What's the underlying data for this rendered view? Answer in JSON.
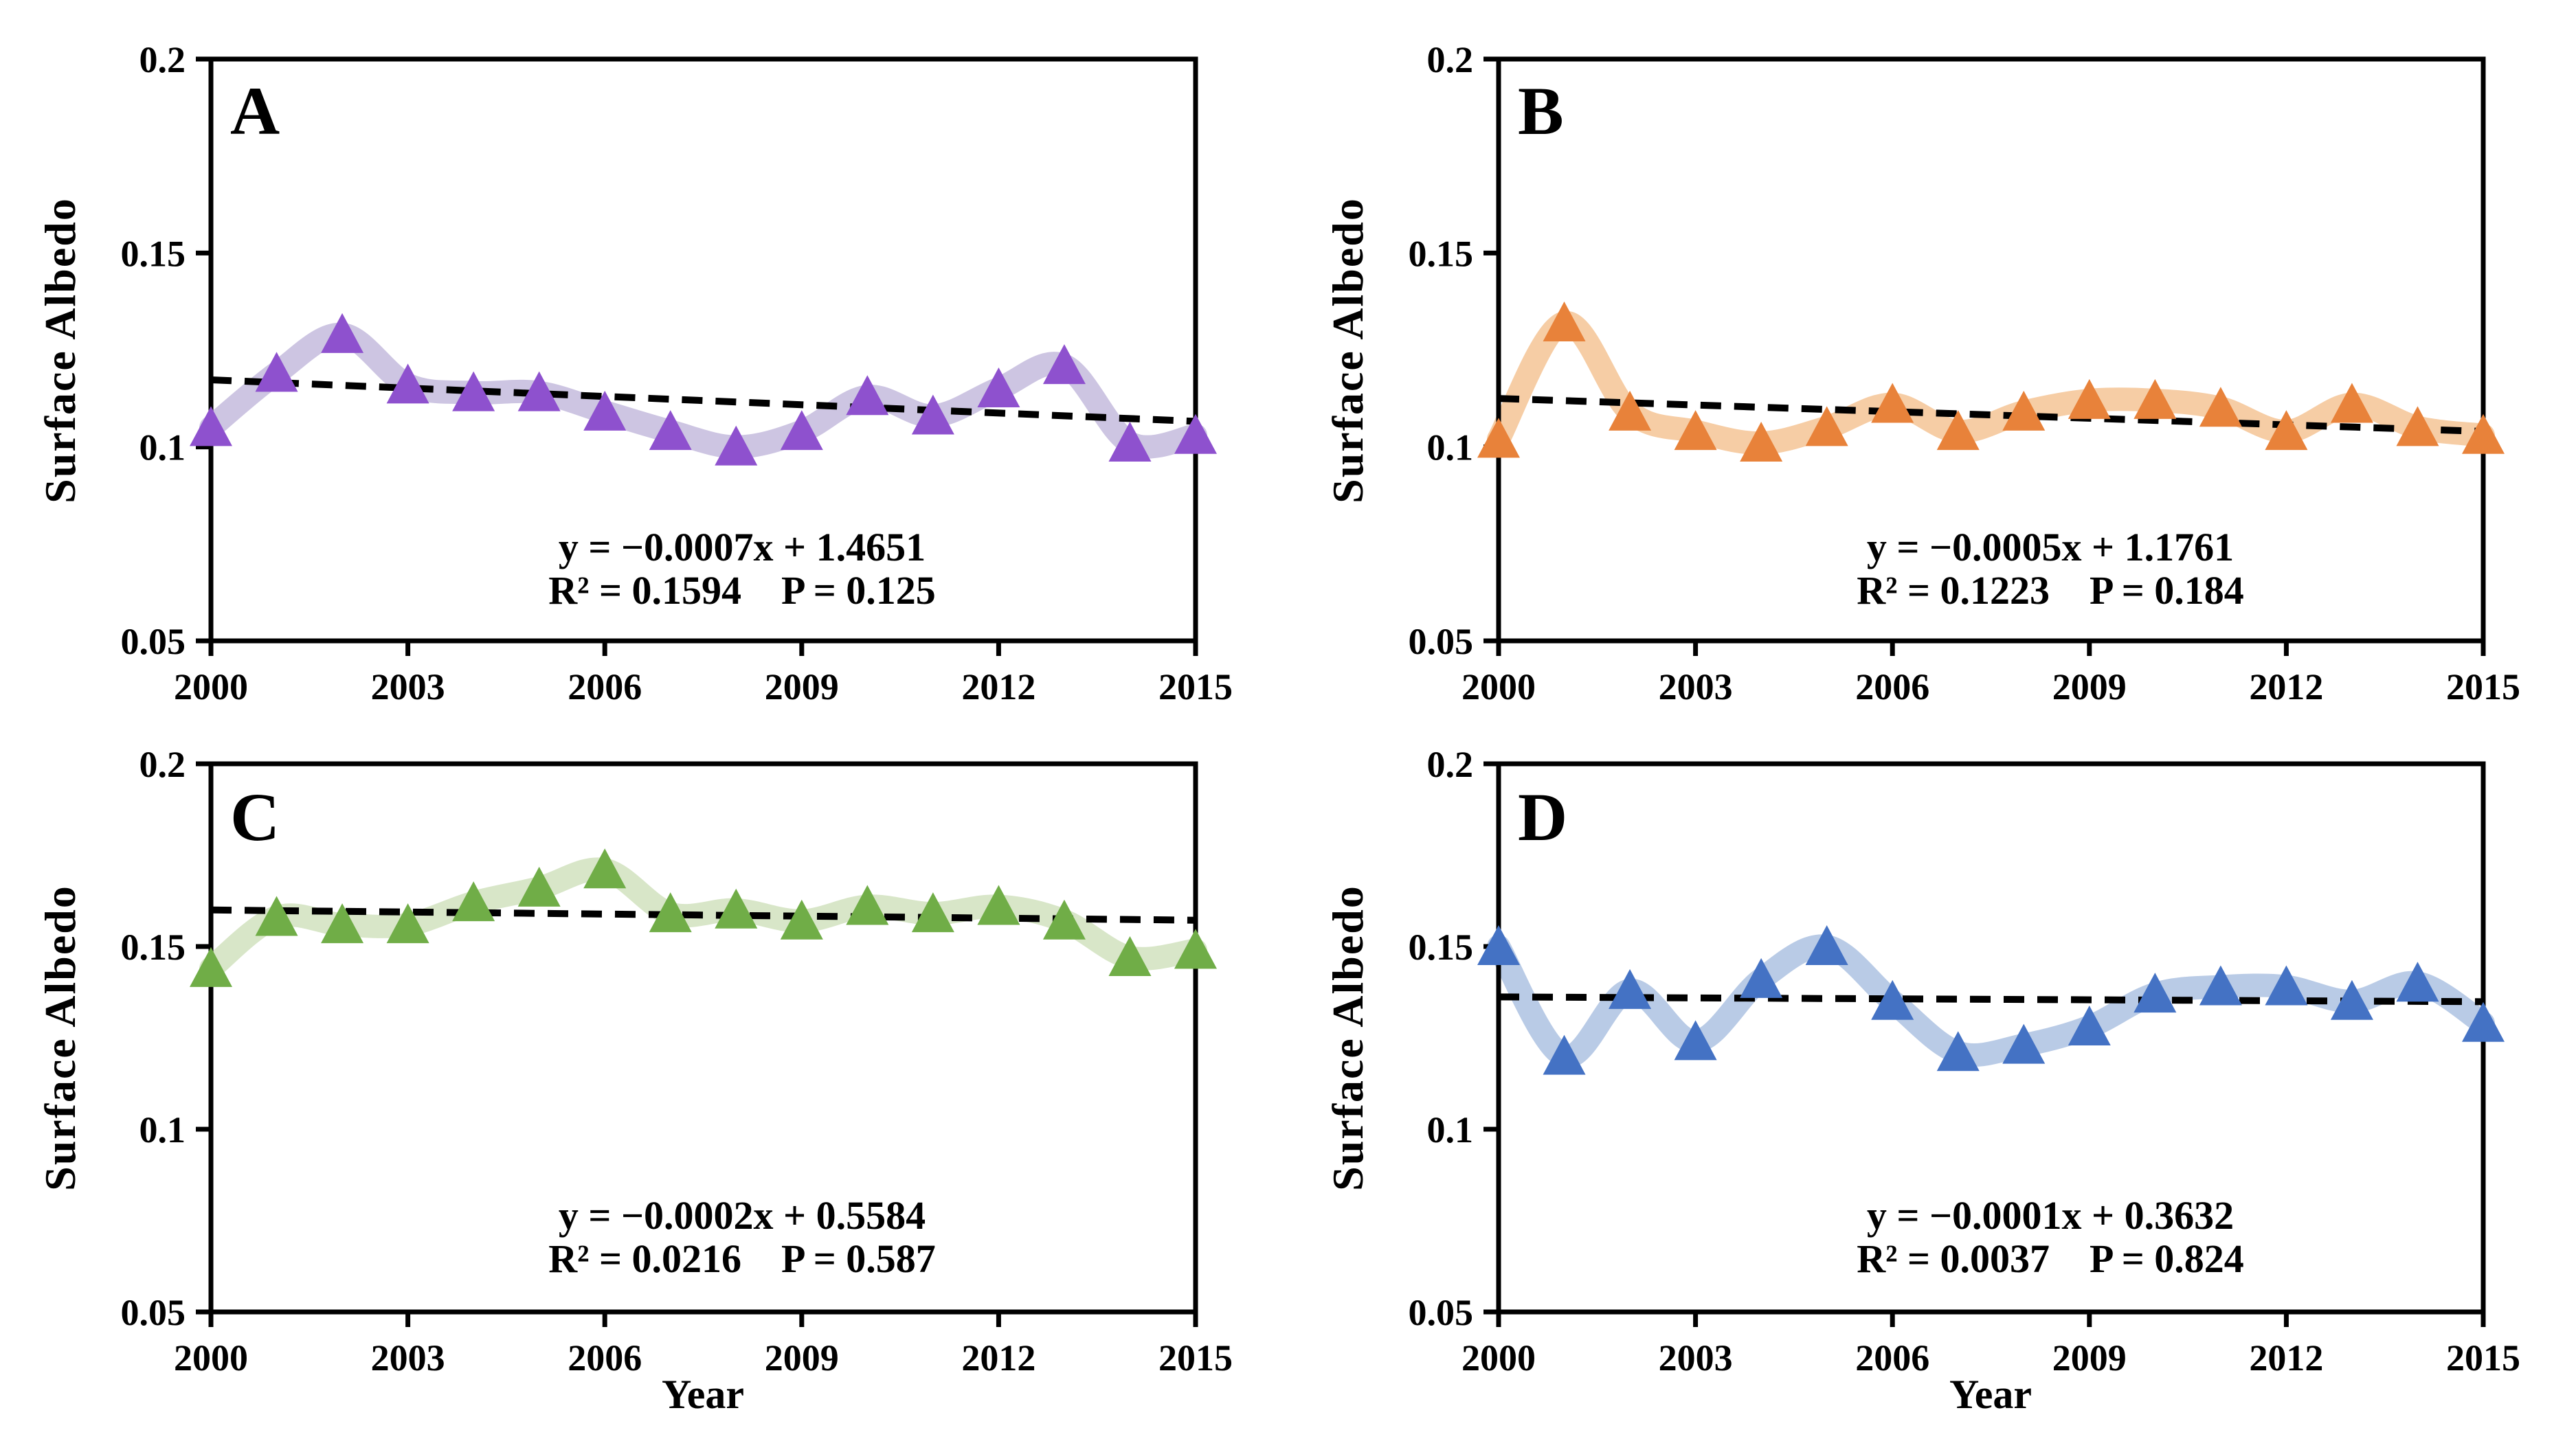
{
  "figure": {
    "ylabel": "Surface Albedo",
    "xlabel": "Year",
    "background": "#ffffff",
    "axis_color": "#000000",
    "trend_line_color": "#000000",
    "trend_line_style": "dashed"
  },
  "axes": {
    "y_min": 0.05,
    "y_max": 0.2,
    "y_tick_labels": [
      "0.2",
      "0.15",
      "0.1",
      "0.05"
    ],
    "y_tick_values": [
      0.2,
      0.15,
      0.1,
      0.05
    ],
    "x_min": 2000,
    "x_max": 2015,
    "x_tick_labels": [
      "2000",
      "2003",
      "2006",
      "2009",
      "2012",
      "2015"
    ],
    "x_tick_values": [
      2000,
      2003,
      2006,
      2009,
      2012,
      2015
    ]
  },
  "chart_data": [
    {
      "type": "line",
      "letter": "A",
      "marker": "triangle",
      "marker_color": "#8E51CE",
      "band_color": "#CDC5E2",
      "equation": "y = −0.0007x + 1.4651",
      "r2_p": "R² = 0.1594    P = 0.125",
      "r2": 0.1594,
      "p": 0.125,
      "ylabel": "Surface Albedo",
      "x": [
        2000,
        2001,
        2002,
        2003,
        2004,
        2005,
        2006,
        2007,
        2008,
        2009,
        2010,
        2011,
        2012,
        2013,
        2014,
        2015
      ],
      "values": [
        0.105,
        0.119,
        0.129,
        0.116,
        0.114,
        0.114,
        0.109,
        0.104,
        0.1,
        0.104,
        0.113,
        0.108,
        0.115,
        0.121,
        0.101,
        0.103
      ],
      "trend_start": 0.1173,
      "trend_end": 0.1066
    },
    {
      "type": "line",
      "letter": "B",
      "marker": "triangle",
      "marker_color": "#E8823A",
      "band_color": "#F6CDA5",
      "equation": "y = −0.0005x + 1.1761",
      "r2_p": "R² = 0.1223    P = 0.184",
      "r2": 0.1223,
      "p": 0.184,
      "ylabel": "Surface Albedo",
      "x": [
        2000,
        2001,
        2002,
        2003,
        2004,
        2005,
        2006,
        2007,
        2008,
        2009,
        2010,
        2011,
        2012,
        2013,
        2014,
        2015
      ],
      "values": [
        0.102,
        0.132,
        0.109,
        0.104,
        0.101,
        0.105,
        0.111,
        0.104,
        0.109,
        0.112,
        0.112,
        0.11,
        0.104,
        0.111,
        0.105,
        0.103
      ],
      "trend_start": 0.1125,
      "trend_end": 0.104
    },
    {
      "type": "line",
      "letter": "C",
      "marker": "triangle",
      "marker_color": "#70AD47",
      "band_color": "#D8E6C8",
      "equation": "y = −0.0002x + 0.5584",
      "r2_p": "R² = 0.0216    P = 0.587",
      "r2": 0.0216,
      "p": 0.587,
      "ylabel": "Surface Albedo",
      "xlabel": "Year",
      "x": [
        2000,
        2001,
        2002,
        2003,
        2004,
        2005,
        2006,
        2007,
        2008,
        2009,
        2010,
        2011,
        2012,
        2013,
        2014,
        2015
      ],
      "values": [
        0.144,
        0.158,
        0.156,
        0.156,
        0.162,
        0.166,
        0.171,
        0.159,
        0.16,
        0.157,
        0.161,
        0.159,
        0.161,
        0.157,
        0.147,
        0.149
      ],
      "trend_start": 0.16,
      "trend_end": 0.1572
    },
    {
      "type": "line",
      "letter": "D",
      "marker": "triangle",
      "marker_color": "#4472C4",
      "band_color": "#B9CBE6",
      "equation": "y = −0.0001x + 0.3632",
      "r2_p": "R² = 0.0037    P = 0.824",
      "r2": 0.0037,
      "p": 0.824,
      "ylabel": "Surface Albedo",
      "xlabel": "Year",
      "x": [
        2000,
        2001,
        2002,
        2003,
        2004,
        2005,
        2006,
        2007,
        2008,
        2009,
        2010,
        2011,
        2012,
        2013,
        2014,
        2015
      ],
      "values": [
        0.15,
        0.12,
        0.138,
        0.124,
        0.141,
        0.15,
        0.135,
        0.121,
        0.123,
        0.128,
        0.137,
        0.139,
        0.139,
        0.135,
        0.14,
        0.129
      ],
      "trend_start": 0.1362,
      "trend_end": 0.1349
    }
  ]
}
